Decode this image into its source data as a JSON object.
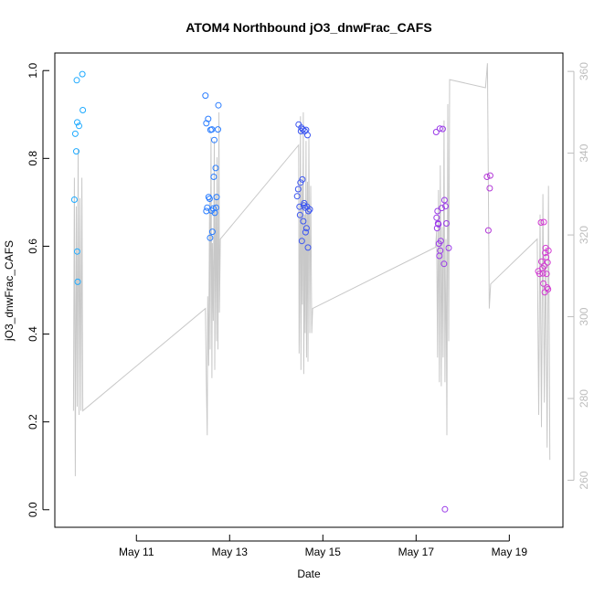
{
  "chart_data": {
    "type": "scatter",
    "title": "ATOM4 Northbound jO3_dnwFrac_CAFS",
    "xlabel": "Date",
    "ylabel": "jO3_dnwFrac_CAFS",
    "x_unit": "days since May 10 00:00",
    "xlim": [
      -0.75,
      10.15
    ],
    "ylim": [
      -0.04,
      1.04
    ],
    "y2lim": [
      248.5,
      364.5
    ],
    "x_ticks": [
      {
        "value": 1,
        "label": "May 11"
      },
      {
        "value": 3,
        "label": "May 13"
      },
      {
        "value": 5,
        "label": "May 15"
      },
      {
        "value": 7,
        "label": "May 17"
      },
      {
        "value": 9,
        "label": "May 19"
      }
    ],
    "y_ticks": [
      {
        "value": 0.0,
        "label": "0.0"
      },
      {
        "value": 0.2,
        "label": "0.2"
      },
      {
        "value": 0.4,
        "label": "0.4"
      },
      {
        "value": 0.6,
        "label": "0.6"
      },
      {
        "value": 0.8,
        "label": "0.8"
      },
      {
        "value": 1.0,
        "label": "1.0"
      }
    ],
    "y2_ticks": [
      {
        "value": 260,
        "label": "260"
      },
      {
        "value": 280,
        "label": "280"
      },
      {
        "value": 300,
        "label": "300"
      },
      {
        "value": 320,
        "label": "320"
      },
      {
        "value": 340,
        "label": "340"
      },
      {
        "value": 360,
        "label": "360"
      }
    ],
    "points": [
      {
        "x": -0.33,
        "y": 0.706,
        "color": "#1eaaff"
      },
      {
        "x": -0.31,
        "y": 0.856,
        "color": "#1eaaff"
      },
      {
        "x": -0.29,
        "y": 0.816,
        "color": "#1eaaff"
      },
      {
        "x": -0.28,
        "y": 0.978,
        "color": "#1eaaff"
      },
      {
        "x": -0.27,
        "y": 0.882,
        "color": "#1eaaff"
      },
      {
        "x": -0.27,
        "y": 0.588,
        "color": "#1eaaff"
      },
      {
        "x": -0.26,
        "y": 0.519,
        "color": "#1eaaff"
      },
      {
        "x": -0.23,
        "y": 0.874,
        "color": "#1eaaff"
      },
      {
        "x": -0.16,
        "y": 0.992,
        "color": "#1eaaff"
      },
      {
        "x": -0.15,
        "y": 0.91,
        "color": "#1eaaff"
      },
      {
        "x": 2.48,
        "y": 0.943,
        "color": "#2a7dff"
      },
      {
        "x": 2.5,
        "y": 0.88,
        "color": "#2a7dff"
      },
      {
        "x": 2.5,
        "y": 0.68,
        "color": "#2a7dff"
      },
      {
        "x": 2.52,
        "y": 0.688,
        "color": "#2a7dff"
      },
      {
        "x": 2.54,
        "y": 0.89,
        "color": "#2a7dff"
      },
      {
        "x": 2.55,
        "y": 0.712,
        "color": "#2a7dff"
      },
      {
        "x": 2.57,
        "y": 0.708,
        "color": "#2a7dff"
      },
      {
        "x": 2.58,
        "y": 0.619,
        "color": "#2a7dff"
      },
      {
        "x": 2.59,
        "y": 0.865,
        "color": "#2a7dff"
      },
      {
        "x": 2.61,
        "y": 0.681,
        "color": "#2a7dff"
      },
      {
        "x": 2.62,
        "y": 0.866,
        "color": "#2a7dff"
      },
      {
        "x": 2.63,
        "y": 0.633,
        "color": "#2a7dff"
      },
      {
        "x": 2.65,
        "y": 0.686,
        "color": "#2a7dff"
      },
      {
        "x": 2.66,
        "y": 0.758,
        "color": "#2a7dff"
      },
      {
        "x": 2.67,
        "y": 0.842,
        "color": "#2a7dff"
      },
      {
        "x": 2.68,
        "y": 0.676,
        "color": "#2a7dff"
      },
      {
        "x": 2.7,
        "y": 0.778,
        "color": "#2a7dff"
      },
      {
        "x": 2.71,
        "y": 0.688,
        "color": "#2a7dff"
      },
      {
        "x": 2.72,
        "y": 0.712,
        "color": "#2a7dff"
      },
      {
        "x": 2.75,
        "y": 0.866,
        "color": "#2a7dff"
      },
      {
        "x": 2.76,
        "y": 0.921,
        "color": "#2a7dff"
      },
      {
        "x": 4.45,
        "y": 0.714,
        "color": "#3b55f0"
      },
      {
        "x": 4.47,
        "y": 0.73,
        "color": "#3b55f0"
      },
      {
        "x": 4.48,
        "y": 0.877,
        "color": "#3b55f0"
      },
      {
        "x": 4.5,
        "y": 0.69,
        "color": "#3b55f0"
      },
      {
        "x": 4.51,
        "y": 0.671,
        "color": "#3b55f0"
      },
      {
        "x": 4.52,
        "y": 0.745,
        "color": "#3b55f0"
      },
      {
        "x": 4.53,
        "y": 0.862,
        "color": "#3b55f0"
      },
      {
        "x": 4.54,
        "y": 0.87,
        "color": "#3b55f0"
      },
      {
        "x": 4.55,
        "y": 0.612,
        "color": "#3b55f0"
      },
      {
        "x": 4.56,
        "y": 0.752,
        "color": "#3b55f0"
      },
      {
        "x": 4.57,
        "y": 0.866,
        "color": "#3b55f0"
      },
      {
        "x": 4.58,
        "y": 0.657,
        "color": "#3b55f0"
      },
      {
        "x": 4.59,
        "y": 0.693,
        "color": "#3b55f0"
      },
      {
        "x": 4.6,
        "y": 0.698,
        "color": "#3b55f0"
      },
      {
        "x": 4.61,
        "y": 0.862,
        "color": "#3b55f0"
      },
      {
        "x": 4.62,
        "y": 0.688,
        "color": "#3b55f0"
      },
      {
        "x": 4.63,
        "y": 0.632,
        "color": "#3b55f0"
      },
      {
        "x": 4.64,
        "y": 0.865,
        "color": "#3b55f0"
      },
      {
        "x": 4.65,
        "y": 0.641,
        "color": "#3b55f0"
      },
      {
        "x": 4.66,
        "y": 0.69,
        "color": "#3b55f0"
      },
      {
        "x": 4.67,
        "y": 0.853,
        "color": "#3b55f0"
      },
      {
        "x": 4.68,
        "y": 0.597,
        "color": "#3b55f0"
      },
      {
        "x": 4.69,
        "y": 0.68,
        "color": "#3b55f0"
      },
      {
        "x": 4.72,
        "y": 0.684,
        "color": "#3b55f0"
      },
      {
        "x": 7.43,
        "y": 0.86,
        "color": "#9a3ae8"
      },
      {
        "x": 7.44,
        "y": 0.665,
        "color": "#9a3ae8"
      },
      {
        "x": 7.45,
        "y": 0.641,
        "color": "#9a3ae8"
      },
      {
        "x": 7.46,
        "y": 0.68,
        "color": "#9a3ae8"
      },
      {
        "x": 7.47,
        "y": 0.652,
        "color": "#9a3ae8"
      },
      {
        "x": 7.48,
        "y": 0.65,
        "color": "#9a3ae8"
      },
      {
        "x": 7.49,
        "y": 0.606,
        "color": "#9a3ae8"
      },
      {
        "x": 7.5,
        "y": 0.578,
        "color": "#9a3ae8"
      },
      {
        "x": 7.51,
        "y": 0.868,
        "color": "#9a3ae8"
      },
      {
        "x": 7.52,
        "y": 0.59,
        "color": "#9a3ae8"
      },
      {
        "x": 7.53,
        "y": 0.612,
        "color": "#9a3ae8"
      },
      {
        "x": 7.55,
        "y": 0.687,
        "color": "#9a3ae8"
      },
      {
        "x": 7.57,
        "y": 0.867,
        "color": "#9a3ae8"
      },
      {
        "x": 7.6,
        "y": 0.56,
        "color": "#9a3ae8"
      },
      {
        "x": 7.61,
        "y": 0.705,
        "color": "#9a3ae8"
      },
      {
        "x": 7.62,
        "y": 0.001,
        "color": "#9a3ae8"
      },
      {
        "x": 7.63,
        "y": 0.691,
        "color": "#9a3ae8"
      },
      {
        "x": 7.65,
        "y": 0.652,
        "color": "#9a3ae8"
      },
      {
        "x": 7.7,
        "y": 0.596,
        "color": "#9a3ae8"
      },
      {
        "x": 8.52,
        "y": 0.758,
        "color": "#b43ad8"
      },
      {
        "x": 8.55,
        "y": 0.636,
        "color": "#b43ad8"
      },
      {
        "x": 8.58,
        "y": 0.732,
        "color": "#b43ad8"
      },
      {
        "x": 8.59,
        "y": 0.761,
        "color": "#b43ad8"
      },
      {
        "x": 9.62,
        "y": 0.543,
        "color": "#d23ad2"
      },
      {
        "x": 9.65,
        "y": 0.537,
        "color": "#d23ad2"
      },
      {
        "x": 9.68,
        "y": 0.654,
        "color": "#d23ad2"
      },
      {
        "x": 9.69,
        "y": 0.565,
        "color": "#d23ad2"
      },
      {
        "x": 9.71,
        "y": 0.55,
        "color": "#d23ad2"
      },
      {
        "x": 9.72,
        "y": 0.538,
        "color": "#d23ad2"
      },
      {
        "x": 9.73,
        "y": 0.515,
        "color": "#d23ad2"
      },
      {
        "x": 9.74,
        "y": 0.655,
        "color": "#d23ad2"
      },
      {
        "x": 9.75,
        "y": 0.555,
        "color": "#d23ad2"
      },
      {
        "x": 9.76,
        "y": 0.495,
        "color": "#d23ad2"
      },
      {
        "x": 9.77,
        "y": 0.585,
        "color": "#d23ad2"
      },
      {
        "x": 9.78,
        "y": 0.596,
        "color": "#d23ad2"
      },
      {
        "x": 9.79,
        "y": 0.575,
        "color": "#d23ad2"
      },
      {
        "x": 9.8,
        "y": 0.537,
        "color": "#d23ad2"
      },
      {
        "x": 9.81,
        "y": 0.506,
        "color": "#d23ad2"
      },
      {
        "x": 9.82,
        "y": 0.563,
        "color": "#d23ad2"
      },
      {
        "x": 9.83,
        "y": 0.502,
        "color": "#d23ad2"
      },
      {
        "x": 9.84,
        "y": 0.59,
        "color": "#d23ad2"
      }
    ],
    "line_series": {
      "name": "secondary (right axis)",
      "color": "#c8c8c8",
      "x": [
        -0.35,
        -0.33,
        -0.31,
        -0.29,
        -0.27,
        -0.25,
        -0.23,
        -0.21,
        -0.19,
        -0.17,
        -0.15,
        2.48,
        2.5,
        2.52,
        2.53,
        2.55,
        2.57,
        2.58,
        2.6,
        2.62,
        2.63,
        2.65,
        2.67,
        2.68,
        2.7,
        2.72,
        2.73,
        2.75,
        2.77,
        2.78,
        2.8,
        4.48,
        4.49,
        4.5,
        4.52,
        4.53,
        4.55,
        4.56,
        4.58,
        4.59,
        4.61,
        4.62,
        4.64,
        4.65,
        4.67,
        4.68,
        4.7,
        4.72,
        4.74,
        4.76,
        4.78,
        7.42,
        7.44,
        7.46,
        7.48,
        7.5,
        7.52,
        7.54,
        7.56,
        7.58,
        7.6,
        7.62,
        7.64,
        7.66,
        7.68,
        7.7,
        7.72,
        8.49,
        8.53,
        8.57,
        8.6,
        9.6,
        9.63,
        9.66,
        9.69,
        9.72,
        9.75,
        9.78,
        9.81,
        9.84,
        9.87
      ],
      "y": [
        277,
        334,
        261,
        327,
        278,
        341,
        276,
        329,
        277,
        334,
        277,
        302,
        284,
        271,
        305,
        288,
        329,
        292,
        344,
        285,
        318,
        299,
        343,
        287,
        330,
        294,
        339,
        292,
        350,
        301,
        319,
        342,
        291,
        302,
        349,
        287,
        332,
        303,
        350,
        286,
        325,
        296,
        343,
        290,
        333,
        289,
        344,
        296,
        332,
        296,
        302,
        317,
        321,
        290,
        331,
        284,
        337,
        283,
        322,
        290,
        348,
        284,
        319,
        271,
        352,
        294,
        358,
        356,
        362,
        302,
        308,
        319,
        276,
        325,
        273,
        330,
        279,
        317,
        268,
        332,
        265
      ],
      "y_note": "right-axis values (260–360 scale)"
    }
  }
}
